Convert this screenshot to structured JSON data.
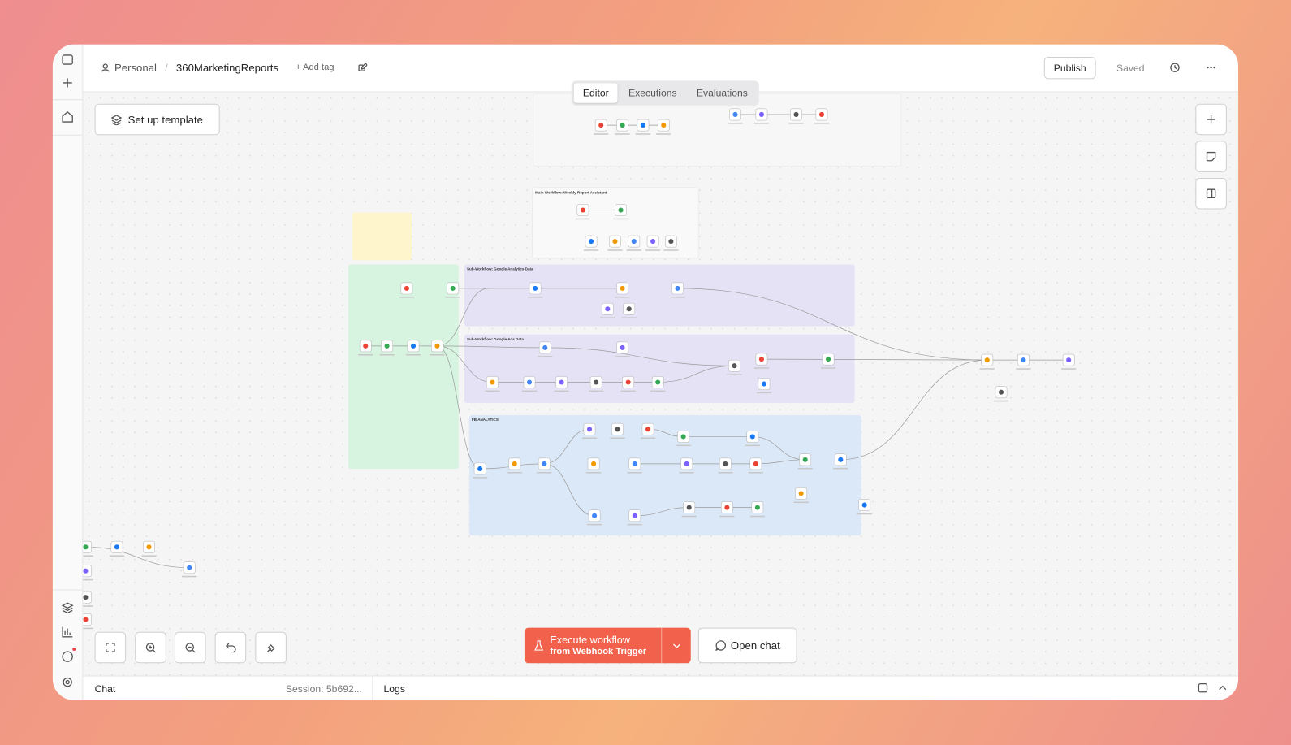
{
  "header": {
    "breadcrumb": {
      "project": "Personal",
      "workflow": "360MarketingReports"
    },
    "add_tag": "+ Add tag",
    "publish": "Publish",
    "saved": "Saved"
  },
  "tabs": [
    "Editor",
    "Executions",
    "Evaluations"
  ],
  "setup_template": "Set up template",
  "canvas": {
    "groups": {
      "main": "Main Workflow: Weekly Report Assistant",
      "ga": "Sub-Workflow: Google Analytics Data",
      "ads": "Sub-Workflow: Google Ads Data",
      "fb": "FB ANALYTICS"
    }
  },
  "execute": {
    "label": "Execute workflow",
    "sub": "from Webhook Trigger"
  },
  "open_chat": "Open chat",
  "footer": {
    "chat": "Chat",
    "session": "Session: 5b692...",
    "logs": "Logs"
  }
}
